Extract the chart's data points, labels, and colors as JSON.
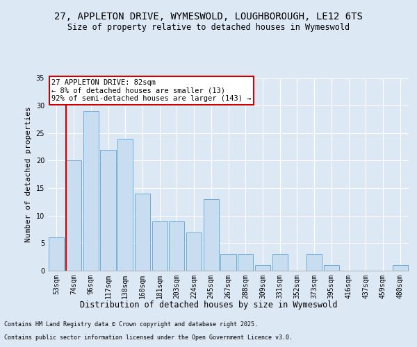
{
  "title": "27, APPLETON DRIVE, WYMESWOLD, LOUGHBOROUGH, LE12 6TS",
  "subtitle": "Size of property relative to detached houses in Wymeswold",
  "xlabel": "Distribution of detached houses by size in Wymeswold",
  "ylabel": "Number of detached properties",
  "categories": [
    "53sqm",
    "74sqm",
    "96sqm",
    "117sqm",
    "138sqm",
    "160sqm",
    "181sqm",
    "203sqm",
    "224sqm",
    "245sqm",
    "267sqm",
    "288sqm",
    "309sqm",
    "331sqm",
    "352sqm",
    "373sqm",
    "395sqm",
    "416sqm",
    "437sqm",
    "459sqm",
    "480sqm"
  ],
  "values": [
    6,
    20,
    29,
    22,
    24,
    14,
    9,
    9,
    7,
    13,
    3,
    3,
    1,
    3,
    0,
    3,
    1,
    0,
    0,
    0,
    1
  ],
  "bar_color": "#c9ddf0",
  "bar_edge_color": "#6aacd6",
  "background_color": "#dde8f5",
  "plot_bg_color": "#dde8f5",
  "grid_color": "#ffffff",
  "vline_color": "#cc0000",
  "vline_pos": 1,
  "annotation_text": "27 APPLETON DRIVE: 82sqm\n← 8% of detached houses are smaller (13)\n92% of semi-detached houses are larger (143) →",
  "annotation_box_facecolor": "#ffffff",
  "annotation_box_edgecolor": "#cc0000",
  "ylim": [
    0,
    35
  ],
  "yticks": [
    0,
    5,
    10,
    15,
    20,
    25,
    30,
    35
  ],
  "footer1": "Contains HM Land Registry data © Crown copyright and database right 2025.",
  "footer2": "Contains public sector information licensed under the Open Government Licence v3.0.",
  "title_fontsize": 10,
  "subtitle_fontsize": 8.5,
  "tick_fontsize": 7,
  "ylabel_fontsize": 8,
  "xlabel_fontsize": 8.5,
  "annot_fontsize": 7.5,
  "footer_fontsize": 6
}
